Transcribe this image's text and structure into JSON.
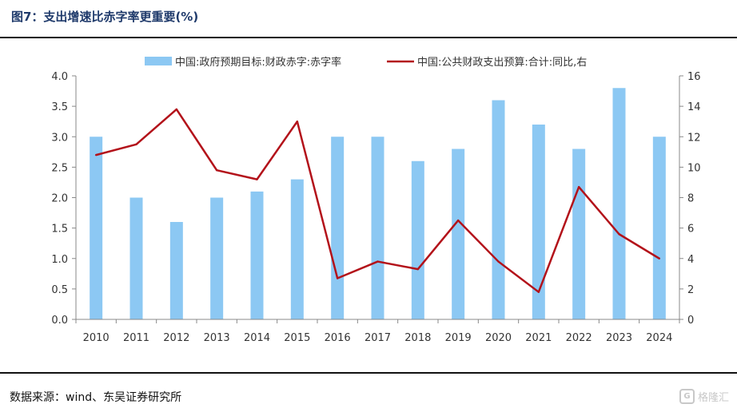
{
  "figure": {
    "title": "图7：支出增速比赤字率更重要(%)",
    "source": "数据来源：wind、东吴证券研究所",
    "watermark": "格隆汇"
  },
  "colors": {
    "bar": "#8cc8f3",
    "line": "#b3121a",
    "axis": "#888888",
    "text": "#333333"
  },
  "chart_data": {
    "type": "bar",
    "title": "",
    "legend_position": "top",
    "categories": [
      "2010",
      "2011",
      "2012",
      "2013",
      "2014",
      "2015",
      "2016",
      "2017",
      "2018",
      "2019",
      "2020",
      "2021",
      "2022",
      "2023",
      "2024"
    ],
    "series": [
      {
        "name": "中国:政府预期目标:财政赤字:赤字率",
        "kind": "bar",
        "axis": "left",
        "values": [
          3.0,
          2.0,
          1.6,
          2.0,
          2.1,
          2.3,
          3.0,
          3.0,
          2.6,
          2.8,
          3.6,
          3.2,
          2.8,
          3.8,
          3.0
        ]
      },
      {
        "name": "中国:公共财政支出预算:合计:同比,右",
        "kind": "line",
        "axis": "right",
        "values": [
          10.8,
          11.5,
          13.8,
          9.8,
          9.2,
          13.0,
          2.7,
          3.8,
          3.3,
          6.5,
          3.8,
          1.8,
          8.7,
          5.6,
          4.0
        ]
      }
    ],
    "y_left": {
      "min": 0,
      "max": 4,
      "ticks": [
        "0.0",
        "0.5",
        "1.0",
        "1.5",
        "2.0",
        "2.5",
        "3.0",
        "3.5",
        "4.0"
      ]
    },
    "y_right": {
      "min": 0,
      "max": 16,
      "ticks": [
        "0",
        "2",
        "4",
        "6",
        "8",
        "10",
        "12",
        "14",
        "16"
      ]
    },
    "grid": false
  }
}
